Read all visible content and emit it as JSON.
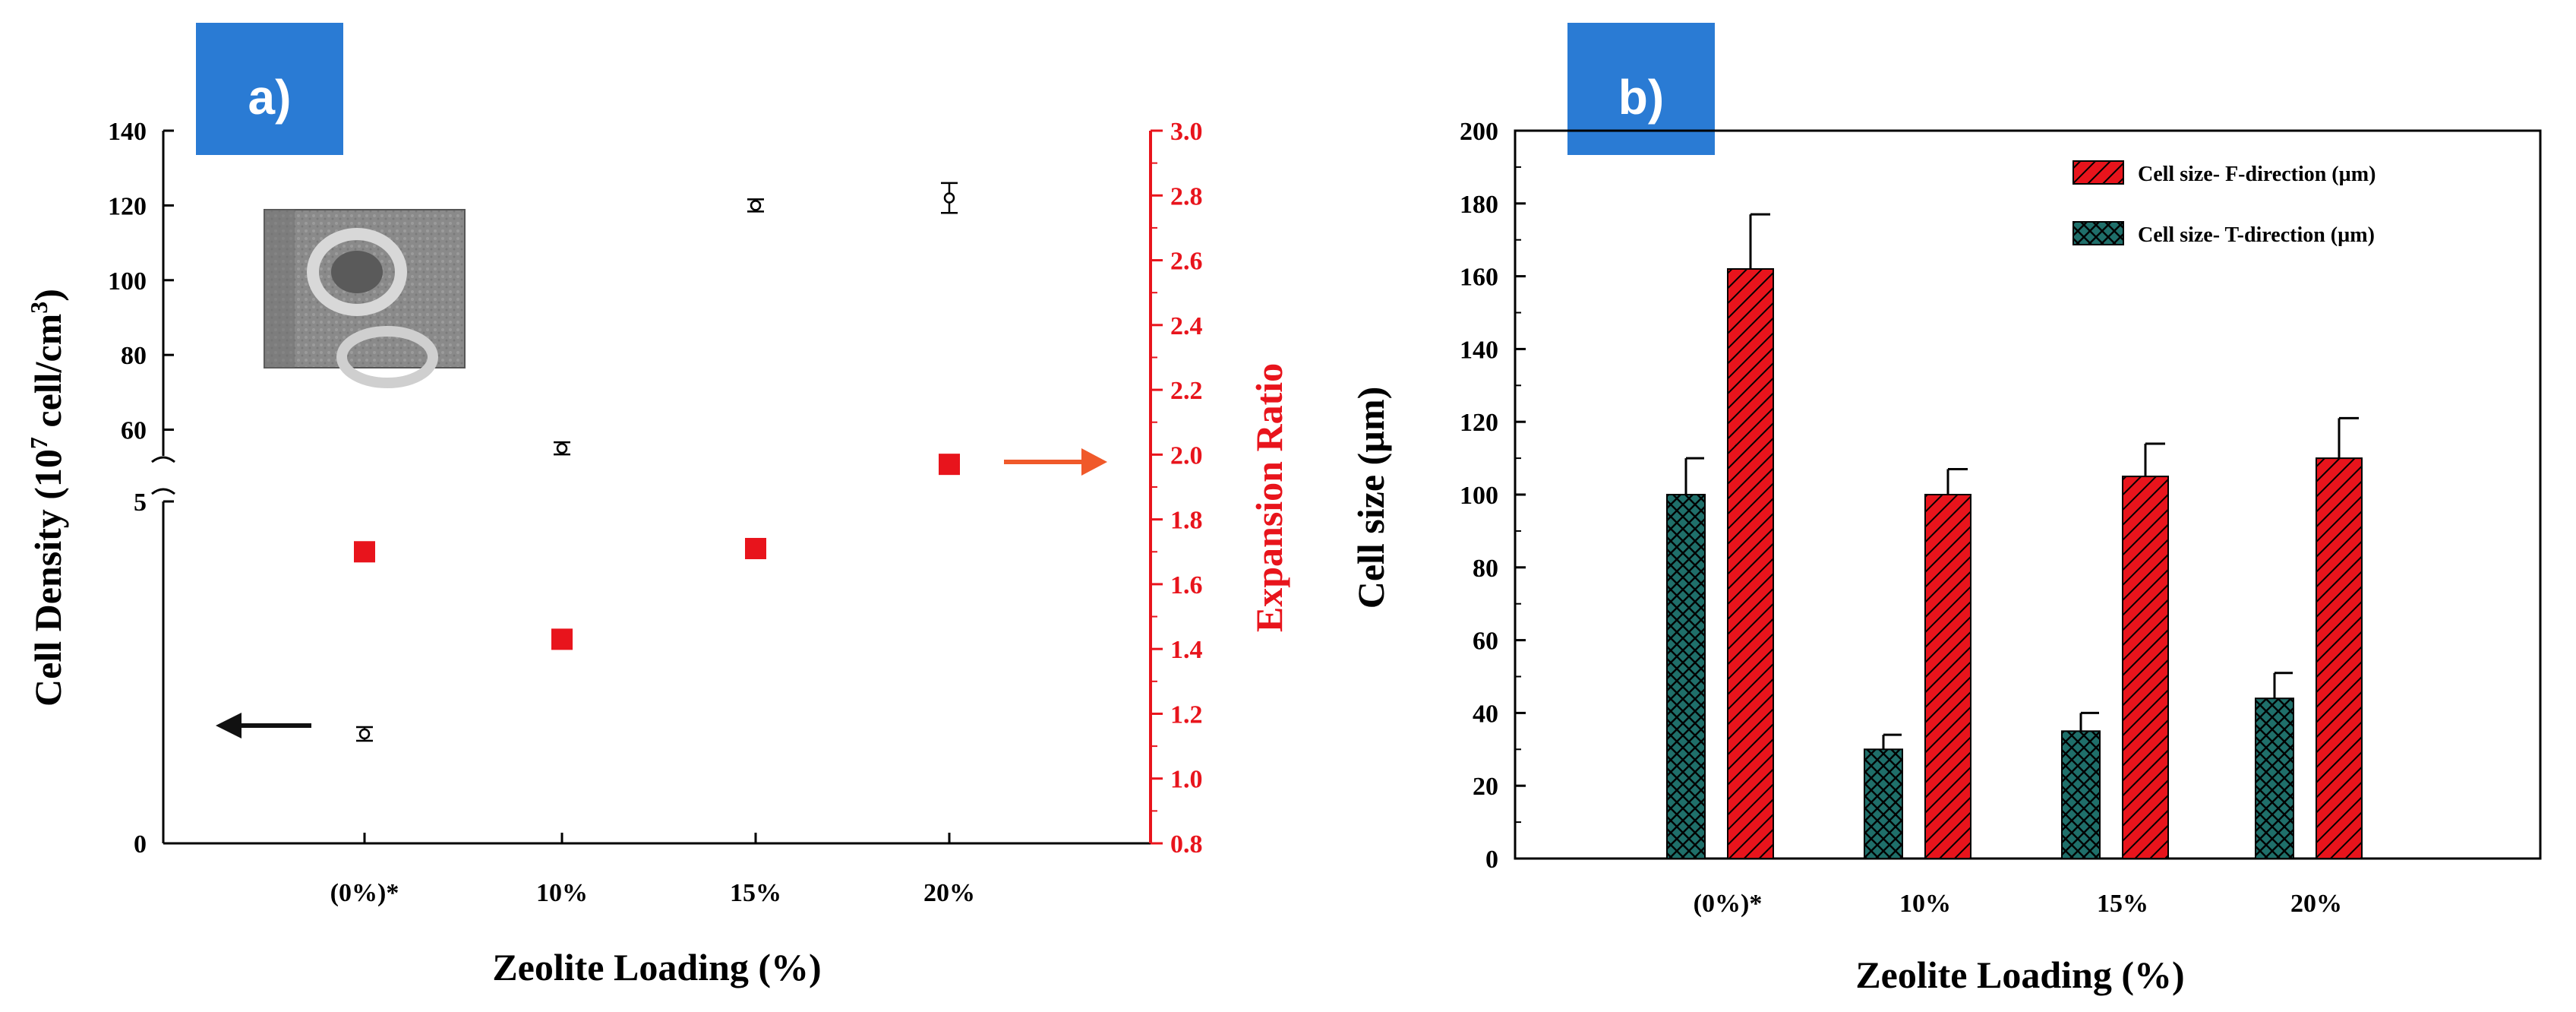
{
  "colors": {
    "axis": "#000000",
    "red_axis": "#e8141c",
    "red_marker": "#e8141c",
    "bar_red": "#e8141c",
    "bar_teal": "#1f6f6a",
    "badge": "#2a7bd4"
  },
  "chart_data": [
    {
      "panel_label": "a)",
      "type": "scatter",
      "categories": [
        "(0%)*",
        "10%",
        "15%",
        "20%"
      ],
      "xlabel": "Zeolite Loading (%)",
      "ylabel_left": {
        "pre": "Cell Density (10",
        "exp1": "7",
        "mid": " cell/cm",
        "exp2": "3",
        "post": ")"
      },
      "ylabel_right": "Expansion Ratio",
      "left_axis": {
        "broken": true,
        "lower_ticks": [
          "0",
          "5"
        ],
        "lower_range": [
          0,
          5
        ],
        "upper_ticks": [
          "60",
          "80",
          "100",
          "120",
          "140"
        ],
        "upper_range": [
          53,
          140
        ]
      },
      "right_axis": {
        "range": [
          0.8,
          3.0
        ],
        "ticks": [
          "0.8",
          "1.0",
          "1.2",
          "1.4",
          "1.6",
          "1.8",
          "2.0",
          "2.2",
          "2.4",
          "2.6",
          "2.8",
          "3.0"
        ]
      },
      "series": [
        {
          "name": "Cell Density",
          "axis": "left",
          "marker": "open-circle",
          "values": [
            1.6,
            55,
            120,
            122
          ],
          "errors": [
            0.1,
            1.5,
            1.5,
            4
          ]
        },
        {
          "name": "Expansion Ratio",
          "axis": "right",
          "marker": "filled-square",
          "values": [
            1.7,
            1.43,
            1.71,
            1.97
          ]
        }
      ],
      "arrows": [
        {
          "direction": "left",
          "series": "Cell Density"
        },
        {
          "direction": "right",
          "series": "Expansion Ratio"
        }
      ],
      "inset": "SEM micrograph of cell structure"
    },
    {
      "panel_label": "b)",
      "type": "bar",
      "categories": [
        "(0%)*",
        "10%",
        "15%",
        "20%"
      ],
      "xlabel": "Zeolite Loading (%)",
      "ylabel": "Cell size (µm)",
      "ylim": [
        0,
        200
      ],
      "yticks": [
        "0",
        "20",
        "40",
        "60",
        "80",
        "100",
        "120",
        "140",
        "160",
        "180",
        "200"
      ],
      "legend_position": "top-right",
      "series": [
        {
          "name": "Cell size- F-direction (µm)",
          "pattern": "red-diagonal-hatch",
          "values": [
            162,
            100,
            105,
            110
          ],
          "errors": [
            15,
            7,
            9,
            11
          ]
        },
        {
          "name": "Cell size- T-direction (µm)",
          "pattern": "teal-crosshatch",
          "values": [
            100,
            30,
            35,
            44
          ],
          "errors": [
            10,
            4,
            5,
            7
          ]
        }
      ]
    }
  ]
}
